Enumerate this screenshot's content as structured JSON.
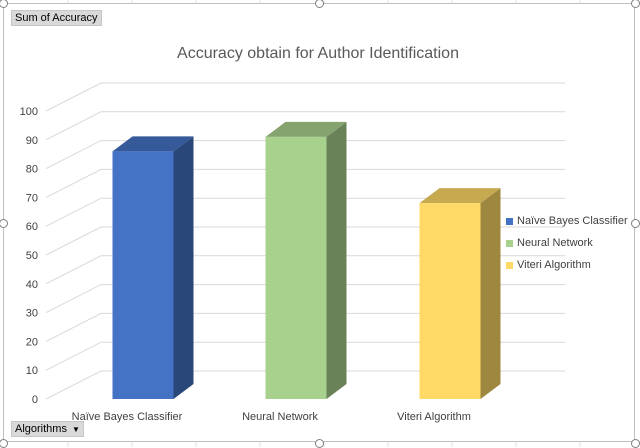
{
  "field_buttons": {
    "value_field": "Sum of Accuracy",
    "axis_field": "Algorithms"
  },
  "chart_data": {
    "type": "bar",
    "title": "Accuracy obtain for Author Identification",
    "categories": [
      "Naïve Bayes Classifier",
      "Neural Network",
      "Viteri Algorithm"
    ],
    "values": [
      86,
      91,
      68
    ],
    "colors": [
      "#4472c4",
      "#a9d18e",
      "#ffd966"
    ],
    "ylim": [
      0,
      100
    ],
    "yticks": [
      0,
      10,
      20,
      30,
      40,
      50,
      60,
      70,
      80,
      90,
      100
    ],
    "grid": true,
    "legend": "right",
    "three_d": true
  },
  "legend": [
    {
      "label": "Naïve Bayes Classifier",
      "color": "#4472c4"
    },
    {
      "label": "Neural Network",
      "color": "#a9d18e"
    },
    {
      "label": "Viteri Algorithm",
      "color": "#ffd966"
    }
  ]
}
